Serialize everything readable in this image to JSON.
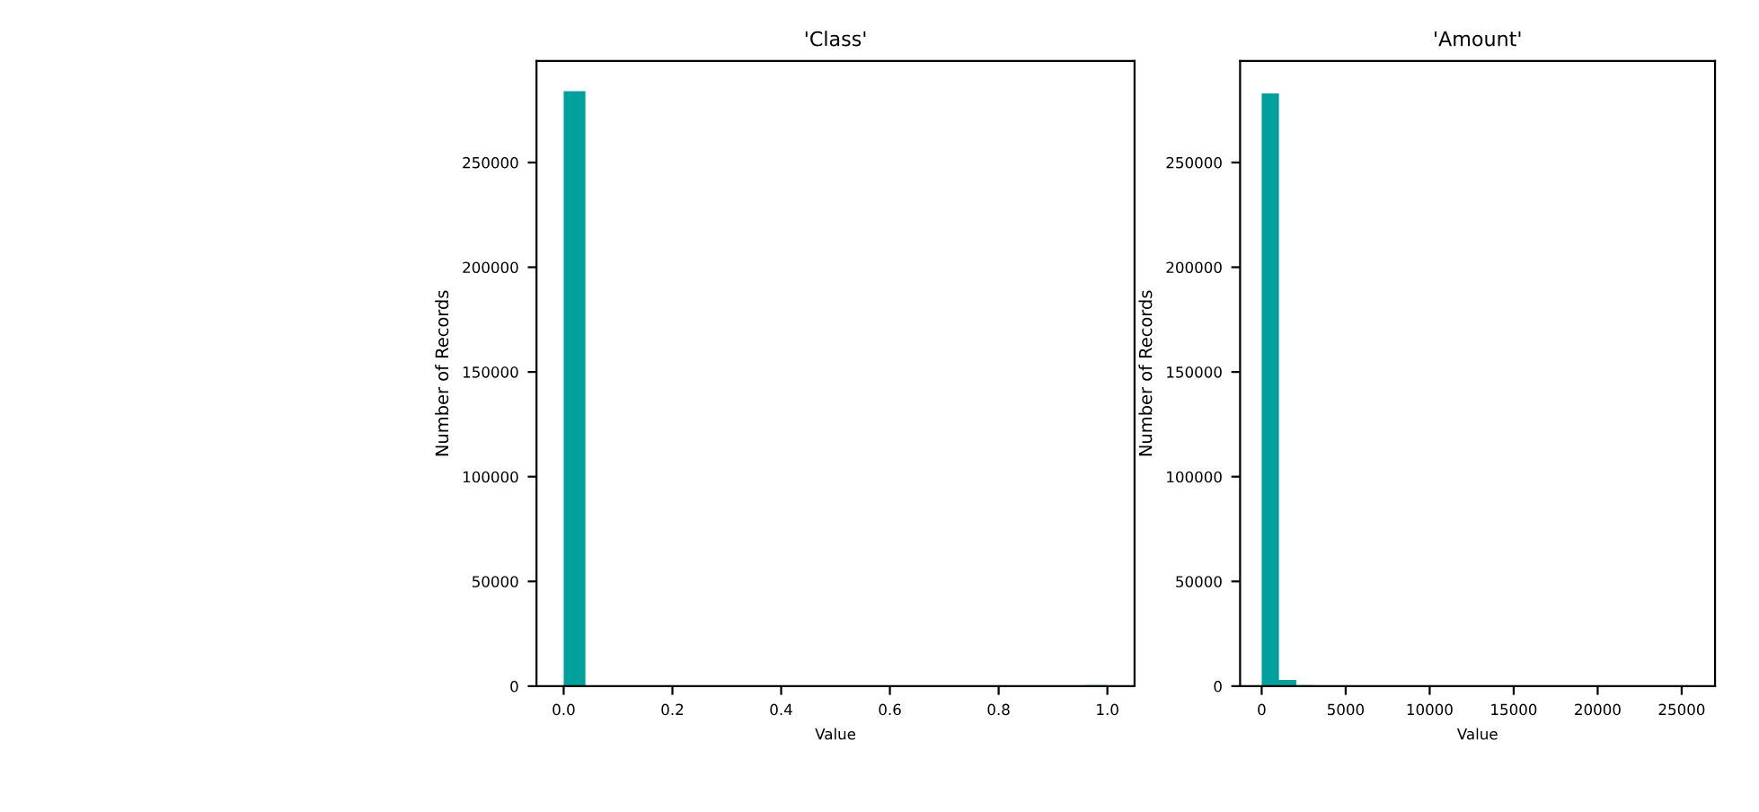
{
  "chart_data": [
    {
      "type": "histogram",
      "title": "'Class'",
      "xlabel": "Value",
      "ylabel": "Number of Records",
      "color": "#00a09d",
      "bins": [
        0,
        0.04,
        0.08,
        0.12,
        0.16,
        0.2,
        0.24,
        0.28,
        0.32,
        0.36,
        0.4,
        0.44,
        0.48,
        0.52,
        0.56,
        0.6,
        0.64,
        0.68,
        0.72,
        0.76,
        0.8,
        0.84,
        0.88,
        0.92,
        0.96,
        1.0
      ],
      "values": [
        284000,
        0,
        0,
        0,
        0,
        0,
        0,
        0,
        0,
        0,
        0,
        0,
        0,
        0,
        0,
        0,
        0,
        0,
        0,
        0,
        0,
        0,
        0,
        0,
        500
      ],
      "xlim": [
        -0.05,
        1.05
      ],
      "xticks": [
        {
          "value": 0,
          "label": "0.0"
        },
        0.2,
        0.4,
        0.6,
        0.8,
        {
          "value": 1,
          "label": "1.0"
        }
      ],
      "ylim": [
        0,
        298500
      ],
      "yticks": [
        0,
        50000,
        100000,
        150000,
        200000,
        250000
      ],
      "grid": false
    },
    {
      "type": "histogram",
      "title": "'Amount'",
      "xlabel": "Value",
      "ylabel": "Number of Records",
      "color": "#00a09d",
      "bins": [
        0,
        1028,
        2056,
        3084,
        4112,
        5140,
        6168,
        7196,
        8224,
        9252,
        10280,
        11308,
        12336,
        13364,
        14392,
        15420,
        16448,
        17476,
        18504,
        19532,
        20560,
        21588,
        22616,
        23644,
        24672,
        25700
      ],
      "values": [
        283000,
        3000,
        500,
        0,
        0,
        0,
        0,
        0,
        0,
        0,
        0,
        0,
        0,
        0,
        0,
        0,
        0,
        0,
        0,
        0,
        0,
        0,
        0,
        0,
        0
      ],
      "xlim": [
        -1285,
        26985
      ],
      "xticks": [
        0,
        5000,
        10000,
        15000,
        20000,
        25000
      ],
      "ylim": [
        0,
        298500
      ],
      "yticks": [
        0,
        50000,
        100000,
        150000,
        200000,
        250000
      ],
      "grid": false
    }
  ]
}
